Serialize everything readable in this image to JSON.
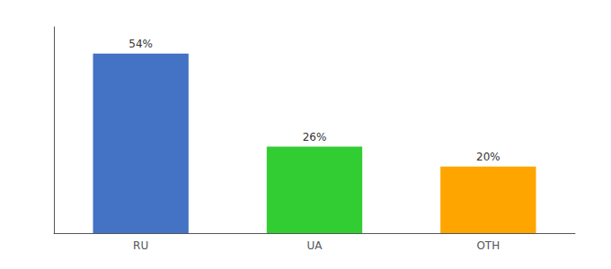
{
  "chart_data": {
    "type": "bar",
    "categories": [
      "RU",
      "UA",
      "OTH"
    ],
    "values": [
      54,
      26,
      20
    ],
    "value_labels": [
      "54%",
      "26%",
      "20%"
    ],
    "data_labels": true,
    "colors": [
      "#4472C4",
      "#32CD32",
      "#FFA500"
    ],
    "ylim": [
      0,
      62
    ],
    "grid": false,
    "tick_labels": "x"
  }
}
